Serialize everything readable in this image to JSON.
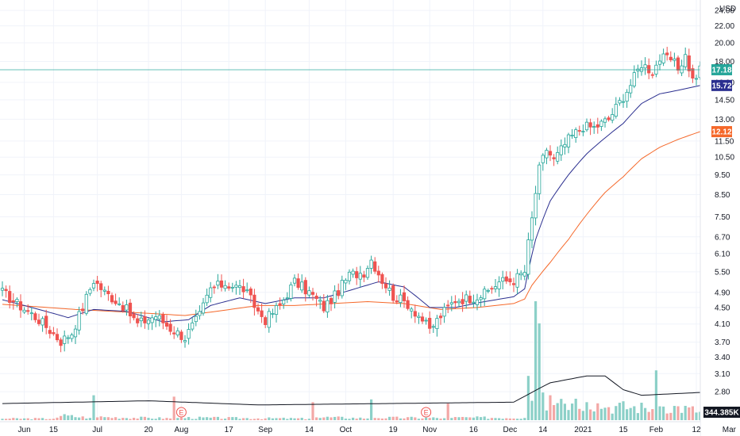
{
  "chart_data": {
    "type": "candlestick",
    "currency_label": "USD",
    "y_scale": "log",
    "ylim": [
      2.55,
      25.0
    ],
    "y_ticks": [
      "24.00",
      "22.00",
      "20.00",
      "18.00",
      "16.00",
      "14.50",
      "13.00",
      "11.50",
      "10.50",
      "9.50",
      "8.50",
      "7.50",
      "6.70",
      "6.10",
      "5.50",
      "4.90",
      "4.50",
      "4.10",
      "3.70",
      "3.40",
      "3.10",
      "2.80"
    ],
    "x_ticks": [
      "Jun",
      "15",
      "Jul",
      "20",
      "Aug",
      "17",
      "Sep",
      "14",
      "Oct",
      "19",
      "Nov",
      "16",
      "Dec",
      "14",
      "2021",
      "15",
      "Feb",
      "12",
      "Mar"
    ],
    "x_tick_positions": [
      6,
      14,
      26,
      40,
      49,
      62,
      72,
      84,
      94,
      107,
      117,
      129,
      139,
      148,
      159,
      170,
      179,
      190,
      199
    ],
    "bar_count": 195,
    "price_tags": {
      "last": "17.18",
      "ma_fast": "15.72",
      "ma_slow": "12.12"
    },
    "volume_label": "344.385K",
    "earnings_marker": "E",
    "earnings_bars": [
      49,
      116,
      193
    ],
    "ohlc_keyframes": [
      [
        0,
        4.9
      ],
      [
        4,
        4.6
      ],
      [
        10,
        4.2
      ],
      [
        16,
        3.72
      ],
      [
        19,
        3.9
      ],
      [
        22,
        4.5
      ],
      [
        25,
        5.25
      ],
      [
        28,
        4.9
      ],
      [
        33,
        4.55
      ],
      [
        37,
        4.1
      ],
      [
        42,
        4.3
      ],
      [
        46,
        4.0
      ],
      [
        50,
        3.8
      ],
      [
        54,
        4.3
      ],
      [
        57,
        5.0
      ],
      [
        61,
        5.15
      ],
      [
        66,
        5.0
      ],
      [
        70,
        4.4
      ],
      [
        72,
        4.2
      ],
      [
        76,
        4.55
      ],
      [
        80,
        5.2
      ],
      [
        84,
        4.9
      ],
      [
        88,
        4.5
      ],
      [
        91,
        4.8
      ],
      [
        95,
        5.4
      ],
      [
        99,
        5.5
      ],
      [
        101,
        5.9
      ],
      [
        104,
        5.25
      ],
      [
        107,
        4.8
      ],
      [
        111,
        4.6
      ],
      [
        115,
        4.2
      ],
      [
        117,
        3.95
      ],
      [
        120,
        4.3
      ],
      [
        124,
        4.7
      ],
      [
        128,
        4.75
      ],
      [
        132,
        4.85
      ],
      [
        136,
        5.2
      ],
      [
        140,
        5.25
      ],
      [
        143,
        5.5
      ],
      [
        145,
        7.4
      ],
      [
        147,
        9.8
      ],
      [
        149,
        11.0
      ],
      [
        151,
        10.3
      ],
      [
        155,
        11.6
      ],
      [
        159,
        12.5
      ],
      [
        162,
        12.4
      ],
      [
        166,
        13.0
      ],
      [
        169,
        14.3
      ],
      [
        172,
        15.8
      ],
      [
        175,
        17.8
      ],
      [
        178,
        17.0
      ],
      [
        180,
        18.3
      ],
      [
        183,
        18.2
      ],
      [
        185,
        17.3
      ],
      [
        187,
        18.6
      ],
      [
        189,
        16.2
      ],
      [
        190,
        16.6
      ],
      [
        191,
        17.18
      ]
    ],
    "volume_keyframes": [
      [
        0,
        0.05
      ],
      [
        14,
        0.05
      ],
      [
        16,
        0.15
      ],
      [
        24,
        0.08
      ],
      [
        25,
        0.9
      ],
      [
        26,
        0.1
      ],
      [
        46,
        0.06
      ],
      [
        47,
        0.85
      ],
      [
        48,
        0.08
      ],
      [
        84,
        0.05
      ],
      [
        85,
        0.65
      ],
      [
        86,
        0.1
      ],
      [
        100,
        0.06
      ],
      [
        101,
        0.75
      ],
      [
        102,
        0.08
      ],
      [
        121,
        0.07
      ],
      [
        122,
        0.6
      ],
      [
        123,
        0.08
      ],
      [
        143,
        0.08
      ],
      [
        144,
        1.6
      ],
      [
        145,
        0.7
      ],
      [
        146,
        4.3
      ],
      [
        147,
        3.5
      ],
      [
        148,
        1.0
      ],
      [
        149,
        0.35
      ],
      [
        150,
        0.9
      ],
      [
        156,
        0.6
      ],
      [
        160,
        0.65
      ],
      [
        165,
        0.45
      ],
      [
        178,
        0.4
      ],
      [
        179,
        1.8
      ],
      [
        180,
        0.5
      ],
      [
        191,
        0.3
      ]
    ],
    "volume_avg_keyframes": [
      [
        0,
        0.6
      ],
      [
        40,
        0.7
      ],
      [
        70,
        0.55
      ],
      [
        140,
        0.65
      ],
      [
        147,
        1.15
      ],
      [
        150,
        1.35
      ],
      [
        160,
        1.6
      ],
      [
        165,
        1.6
      ],
      [
        170,
        1.1
      ],
      [
        175,
        0.9
      ],
      [
        191,
        1.0
      ]
    ],
    "ma_fast_keyframes": [
      [
        0,
        4.7
      ],
      [
        10,
        4.45
      ],
      [
        18,
        4.25
      ],
      [
        25,
        4.45
      ],
      [
        34,
        4.4
      ],
      [
        44,
        4.15
      ],
      [
        51,
        4.2
      ],
      [
        57,
        4.55
      ],
      [
        65,
        4.75
      ],
      [
        72,
        4.6
      ],
      [
        80,
        4.75
      ],
      [
        88,
        4.75
      ],
      [
        95,
        4.95
      ],
      [
        103,
        5.2
      ],
      [
        110,
        5.05
      ],
      [
        117,
        4.5
      ],
      [
        124,
        4.5
      ],
      [
        132,
        4.65
      ],
      [
        140,
        4.78
      ],
      [
        143,
        5.0
      ],
      [
        146,
        6.6
      ],
      [
        150,
        8.2
      ],
      [
        155,
        9.5
      ],
      [
        160,
        10.7
      ],
      [
        165,
        11.7
      ],
      [
        170,
        12.7
      ],
      [
        175,
        14.2
      ],
      [
        180,
        15.0
      ],
      [
        185,
        15.3
      ],
      [
        191,
        15.72
      ]
    ],
    "ma_slow_keyframes": [
      [
        0,
        4.58
      ],
      [
        20,
        4.45
      ],
      [
        35,
        4.38
      ],
      [
        50,
        4.3
      ],
      [
        60,
        4.42
      ],
      [
        70,
        4.55
      ],
      [
        80,
        4.55
      ],
      [
        90,
        4.6
      ],
      [
        100,
        4.65
      ],
      [
        110,
        4.6
      ],
      [
        120,
        4.45
      ],
      [
        130,
        4.5
      ],
      [
        140,
        4.6
      ],
      [
        143,
        4.72
      ],
      [
        145,
        5.1
      ],
      [
        150,
        5.8
      ],
      [
        155,
        6.6
      ],
      [
        160,
        7.6
      ],
      [
        165,
        8.6
      ],
      [
        170,
        9.4
      ],
      [
        175,
        10.4
      ],
      [
        180,
        11.1
      ],
      [
        185,
        11.6
      ],
      [
        191,
        12.12
      ]
    ],
    "colors": {
      "up": "#26a69a",
      "down": "#ef5350",
      "volume_up": "#8cd0c8",
      "volume_down": "#f3a8a6",
      "ma_fast": "#2a2e8f",
      "ma_slow": "#f5682a",
      "price_line": "#26a69a",
      "volume_avg": "#131722"
    }
  }
}
